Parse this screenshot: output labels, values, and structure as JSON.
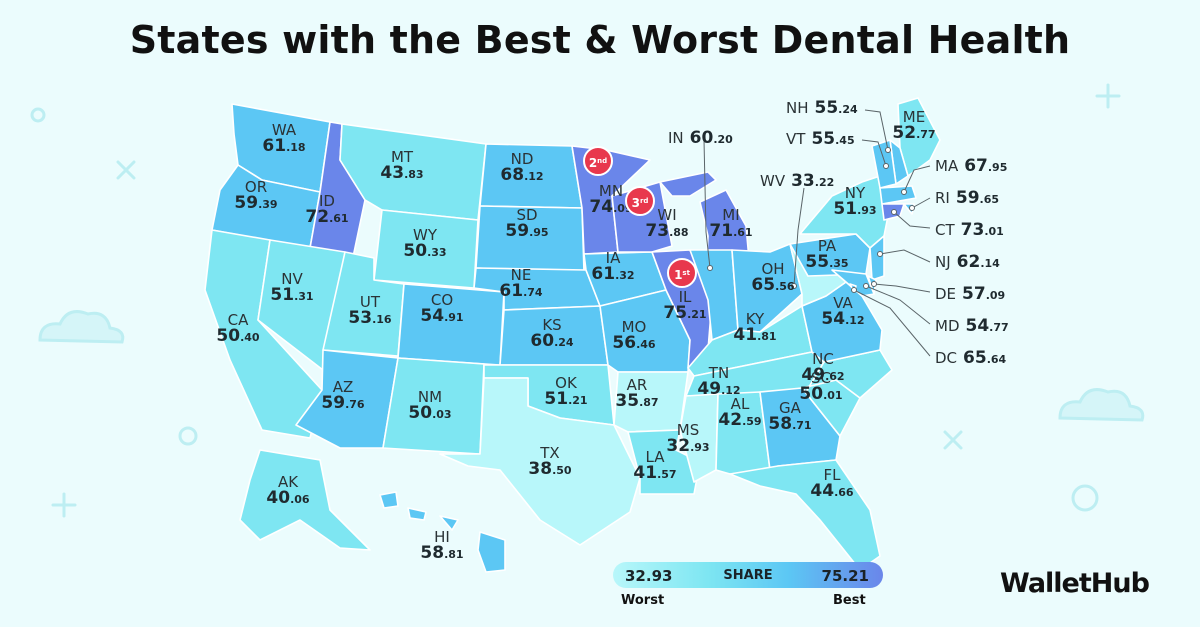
{
  "title": "States with the Best & Worst Dental Health",
  "brand": "WalletHub",
  "legend": {
    "min_value": "32.93",
    "max_value": "75.21",
    "caption": "SHARE",
    "min_label": "Worst",
    "max_label": "Best"
  },
  "scale_colors": [
    "#b8f7fa",
    "#7ee6f2",
    "#5cc7f4",
    "#6a86ea"
  ],
  "rank_badges": [
    {
      "rank": "1",
      "suffix": "st",
      "state": "IL"
    },
    {
      "rank": "2",
      "suffix": "nd",
      "state": "MN"
    },
    {
      "rank": "3",
      "suffix": "rd",
      "state": "WI"
    }
  ],
  "states": {
    "WA": {
      "abbr": "WA",
      "int": "61",
      "dec": ".18",
      "value": 61.18
    },
    "OR": {
      "abbr": "OR",
      "int": "59",
      "dec": ".39",
      "value": 59.39
    },
    "CA": {
      "abbr": "CA",
      "int": "50",
      "dec": ".40",
      "value": 50.4
    },
    "ID": {
      "abbr": "ID",
      "int": "72",
      "dec": ".61",
      "value": 72.61
    },
    "NV": {
      "abbr": "NV",
      "int": "51",
      "dec": ".31",
      "value": 51.31
    },
    "MT": {
      "abbr": "MT",
      "int": "43",
      "dec": ".83",
      "value": 43.83
    },
    "WY": {
      "abbr": "WY",
      "int": "50",
      "dec": ".33",
      "value": 50.33
    },
    "UT": {
      "abbr": "UT",
      "int": "53",
      "dec": ".16",
      "value": 53.16
    },
    "CO": {
      "abbr": "CO",
      "int": "54",
      "dec": ".91",
      "value": 54.91
    },
    "AZ": {
      "abbr": "AZ",
      "int": "59",
      "dec": ".76",
      "value": 59.76
    },
    "NM": {
      "abbr": "NM",
      "int": "50",
      "dec": ".03",
      "value": 50.03
    },
    "ND": {
      "abbr": "ND",
      "int": "68",
      "dec": ".12",
      "value": 68.12
    },
    "SD": {
      "abbr": "SD",
      "int": "59",
      "dec": ".95",
      "value": 59.95
    },
    "NE": {
      "abbr": "NE",
      "int": "61",
      "dec": ".74",
      "value": 61.74
    },
    "KS": {
      "abbr": "KS",
      "int": "60",
      "dec": ".24",
      "value": 60.24
    },
    "OK": {
      "abbr": "OK",
      "int": "51",
      "dec": ".21",
      "value": 51.21
    },
    "TX": {
      "abbr": "TX",
      "int": "38",
      "dec": ".50",
      "value": 38.5
    },
    "MN": {
      "abbr": "MN",
      "int": "74",
      "dec": ".09",
      "value": 74.09
    },
    "IA": {
      "abbr": "IA",
      "int": "61",
      "dec": ".32",
      "value": 61.32
    },
    "MO": {
      "abbr": "MO",
      "int": "56",
      "dec": ".46",
      "value": 56.46
    },
    "AR": {
      "abbr": "AR",
      "int": "35",
      "dec": ".87",
      "value": 35.87
    },
    "LA": {
      "abbr": "LA",
      "int": "41",
      "dec": ".57",
      "value": 41.57
    },
    "WI": {
      "abbr": "WI",
      "int": "73",
      "dec": ".88",
      "value": 73.88
    },
    "IL": {
      "abbr": "IL",
      "int": "75",
      "dec": ".21",
      "value": 75.21
    },
    "MI": {
      "abbr": "MI",
      "int": "71",
      "dec": ".61",
      "value": 71.61
    },
    "IN": {
      "abbr": "IN",
      "int": "60",
      "dec": ".20",
      "value": 60.2
    },
    "OH": {
      "abbr": "OH",
      "int": "65",
      "dec": ".56",
      "value": 65.56
    },
    "KY": {
      "abbr": "KY",
      "int": "41",
      "dec": ".81",
      "value": 41.81
    },
    "TN": {
      "abbr": "TN",
      "int": "49",
      "dec": ".12",
      "value": 49.12
    },
    "MS": {
      "abbr": "MS",
      "int": "32",
      "dec": ".93",
      "value": 32.93
    },
    "AL": {
      "abbr": "AL",
      "int": "42",
      "dec": ".59",
      "value": 42.59
    },
    "GA": {
      "abbr": "GA",
      "int": "58",
      "dec": ".71",
      "value": 58.71
    },
    "FL": {
      "abbr": "FL",
      "int": "44",
      "dec": ".66",
      "value": 44.66
    },
    "SC": {
      "abbr": "SC",
      "int": "50",
      "dec": ".01",
      "value": 50.01
    },
    "NC": {
      "abbr": "NC",
      "int": "49",
      "dec": ".62",
      "value": 49.62
    },
    "VA": {
      "abbr": "VA",
      "int": "54",
      "dec": ".12",
      "value": 54.12
    },
    "WV": {
      "abbr": "WV",
      "int": "33",
      "dec": ".22",
      "value": 33.22
    },
    "PA": {
      "abbr": "PA",
      "int": "55",
      "dec": ".35",
      "value": 55.35
    },
    "NY": {
      "abbr": "NY",
      "int": "51",
      "dec": ".93",
      "value": 51.93
    },
    "ME": {
      "abbr": "ME",
      "int": "52",
      "dec": ".77",
      "value": 52.77
    },
    "NH": {
      "abbr": "NH",
      "int": "55",
      "dec": ".24",
      "value": 55.24
    },
    "VT": {
      "abbr": "VT",
      "int": "55",
      "dec": ".45",
      "value": 55.45
    },
    "MA": {
      "abbr": "MA",
      "int": "67",
      "dec": ".95",
      "value": 67.95
    },
    "RI": {
      "abbr": "RI",
      "int": "59",
      "dec": ".65",
      "value": 59.65
    },
    "CT": {
      "abbr": "CT",
      "int": "73",
      "dec": ".01",
      "value": 73.01
    },
    "NJ": {
      "abbr": "NJ",
      "int": "62",
      "dec": ".14",
      "value": 62.14
    },
    "DE": {
      "abbr": "DE",
      "int": "57",
      "dec": ".09",
      "value": 57.09
    },
    "MD": {
      "abbr": "MD",
      "int": "54",
      "dec": ".77",
      "value": 54.77
    },
    "DC": {
      "abbr": "DC",
      "int": "65",
      "dec": ".64",
      "value": 65.64
    },
    "AK": {
      "abbr": "AK",
      "int": "40",
      "dec": ".06",
      "value": 40.06
    },
    "HI": {
      "abbr": "HI",
      "int": "58",
      "dec": ".81",
      "value": 58.81
    }
  }
}
